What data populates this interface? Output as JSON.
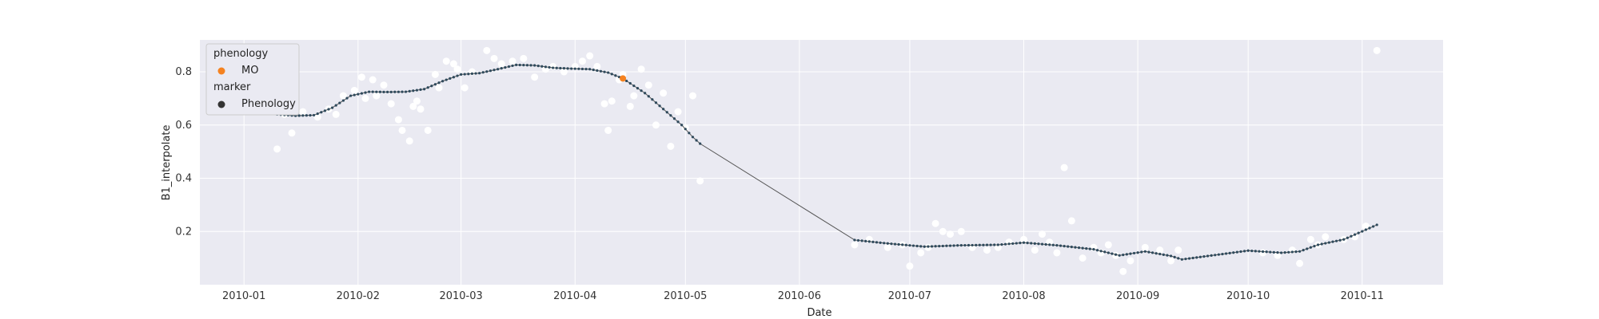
{
  "chart_data": {
    "type": "scatter",
    "title": "",
    "xlabel": "Date",
    "ylabel": "B1_interpolate",
    "grid": true,
    "legend_position": "top-left",
    "xlim": [
      "2009-12-20",
      "2010-11-23"
    ],
    "ylim": [
      0.0,
      0.92
    ],
    "x_ticks": [
      "2010-01",
      "2010-02",
      "2010-03",
      "2010-04",
      "2010-05",
      "2010-06",
      "2010-07",
      "2010-08",
      "2010-09",
      "2010-10",
      "2010-11"
    ],
    "y_ticks": [
      0.2,
      0.4,
      0.6,
      0.8
    ],
    "y_tick_labels": [
      "0.2",
      "0.4",
      "0.6",
      "0.8"
    ],
    "legend": {
      "sections": [
        {
          "title": "phenology",
          "entries": [
            {
              "label": "MO",
              "color": "#f58220"
            }
          ]
        },
        {
          "title": "marker",
          "entries": [
            {
              "label": "Phenology",
              "color": "#333333"
            }
          ]
        }
      ]
    },
    "colors": {
      "background": "#eaeaf2",
      "grid": "#ffffff",
      "raw_points": "#ffffff",
      "curve_line": "#555555",
      "curve_points": "#2f4a5c",
      "phenology_mo": "#f58220"
    },
    "series": [
      {
        "name": "raw observations",
        "kind": "scatter",
        "x": [
          "2010-01-10",
          "2010-01-12",
          "2010-01-14",
          "2010-01-17",
          "2010-01-21",
          "2010-01-24",
          "2010-01-26",
          "2010-01-28",
          "2010-01-31",
          "2010-02-02",
          "2010-02-03",
          "2010-02-05",
          "2010-02-06",
          "2010-02-08",
          "2010-02-10",
          "2010-02-12",
          "2010-02-13",
          "2010-02-15",
          "2010-02-16",
          "2010-02-17",
          "2010-02-18",
          "2010-02-20",
          "2010-02-22",
          "2010-02-23",
          "2010-02-25",
          "2010-02-27",
          "2010-02-28",
          "2010-03-02",
          "2010-03-04",
          "2010-03-08",
          "2010-03-10",
          "2010-03-12",
          "2010-03-15",
          "2010-03-18",
          "2010-03-21",
          "2010-03-24",
          "2010-03-26",
          "2010-03-29",
          "2010-04-01",
          "2010-04-03",
          "2010-04-05",
          "2010-04-07",
          "2010-04-09",
          "2010-04-10",
          "2010-04-11",
          "2010-04-13",
          "2010-04-14",
          "2010-04-16",
          "2010-04-17",
          "2010-04-19",
          "2010-04-21",
          "2010-04-23",
          "2010-04-25",
          "2010-04-27",
          "2010-04-29",
          "2010-05-01",
          "2010-05-03",
          "2010-05-05",
          "2010-06-16",
          "2010-06-20",
          "2010-06-25",
          "2010-06-29",
          "2010-07-01",
          "2010-07-04",
          "2010-07-06",
          "2010-07-08",
          "2010-07-10",
          "2010-07-12",
          "2010-07-15",
          "2010-07-18",
          "2010-07-22",
          "2010-07-25",
          "2010-07-28",
          "2010-08-01",
          "2010-08-04",
          "2010-08-06",
          "2010-08-08",
          "2010-08-10",
          "2010-08-12",
          "2010-08-14",
          "2010-08-17",
          "2010-08-20",
          "2010-08-22",
          "2010-08-24",
          "2010-08-26",
          "2010-08-28",
          "2010-08-30",
          "2010-09-03",
          "2010-09-07",
          "2010-09-10",
          "2010-09-12",
          "2010-10-05",
          "2010-10-09",
          "2010-10-13",
          "2010-10-15",
          "2010-10-18",
          "2010-10-20",
          "2010-10-22",
          "2010-10-27",
          "2010-10-30",
          "2010-11-02",
          "2010-11-05"
        ],
        "y": [
          0.51,
          0.64,
          0.57,
          0.65,
          0.63,
          0.66,
          0.64,
          0.71,
          0.73,
          0.78,
          0.7,
          0.77,
          0.71,
          0.75,
          0.68,
          0.62,
          0.58,
          0.54,
          0.67,
          0.69,
          0.66,
          0.58,
          0.79,
          0.74,
          0.84,
          0.83,
          0.81,
          0.74,
          0.8,
          0.88,
          0.85,
          0.83,
          0.84,
          0.85,
          0.78,
          0.81,
          0.82,
          0.8,
          0.82,
          0.84,
          0.86,
          0.82,
          0.68,
          0.58,
          0.69,
          0.77,
          0.79,
          0.67,
          0.71,
          0.81,
          0.75,
          0.6,
          0.72,
          0.52,
          0.65,
          0.59,
          0.71,
          0.39,
          0.15,
          0.17,
          0.14,
          0.15,
          0.07,
          0.12,
          0.14,
          0.23,
          0.2,
          0.19,
          0.2,
          0.14,
          0.13,
          0.14,
          0.16,
          0.17,
          0.13,
          0.19,
          0.16,
          0.12,
          0.44,
          0.24,
          0.1,
          0.14,
          0.12,
          0.15,
          0.11,
          0.05,
          0.09,
          0.14,
          0.13,
          0.09,
          0.13,
          0.12,
          0.11,
          0.13,
          0.08,
          0.17,
          0.15,
          0.18,
          0.17,
          0.18,
          0.22,
          0.88
        ]
      },
      {
        "name": "interpolated curve",
        "kind": "line+markers",
        "x": [
          "2010-01-10",
          "2010-01-15",
          "2010-01-20",
          "2010-01-25",
          "2010-01-30",
          "2010-02-04",
          "2010-02-09",
          "2010-02-14",
          "2010-02-19",
          "2010-02-24",
          "2010-03-01",
          "2010-03-06",
          "2010-03-11",
          "2010-03-16",
          "2010-03-21",
          "2010-03-26",
          "2010-03-31",
          "2010-04-05",
          "2010-04-10",
          "2010-04-14",
          "2010-04-20",
          "2010-04-25",
          "2010-04-30",
          "2010-05-03",
          "2010-05-05",
          "2010-06-16",
          "2010-06-25",
          "2010-07-05",
          "2010-07-15",
          "2010-07-25",
          "2010-08-01",
          "2010-08-10",
          "2010-08-20",
          "2010-08-27",
          "2010-09-03",
          "2010-09-10",
          "2010-09-13",
          "2010-10-01",
          "2010-10-10",
          "2010-10-15",
          "2010-10-20",
          "2010-10-27",
          "2010-11-05"
        ],
        "y": [
          0.64,
          0.635,
          0.637,
          0.665,
          0.71,
          0.725,
          0.724,
          0.725,
          0.735,
          0.765,
          0.79,
          0.795,
          0.81,
          0.826,
          0.824,
          0.815,
          0.812,
          0.81,
          0.797,
          0.775,
          0.72,
          0.66,
          0.6,
          0.555,
          0.53,
          0.168,
          0.155,
          0.143,
          0.148,
          0.15,
          0.158,
          0.148,
          0.133,
          0.11,
          0.125,
          0.108,
          0.095,
          0.128,
          0.12,
          0.125,
          0.15,
          0.17,
          0.225
        ]
      },
      {
        "name": "MO",
        "kind": "phenology",
        "x": [
          "2010-04-14"
        ],
        "y": [
          0.775
        ]
      }
    ]
  }
}
